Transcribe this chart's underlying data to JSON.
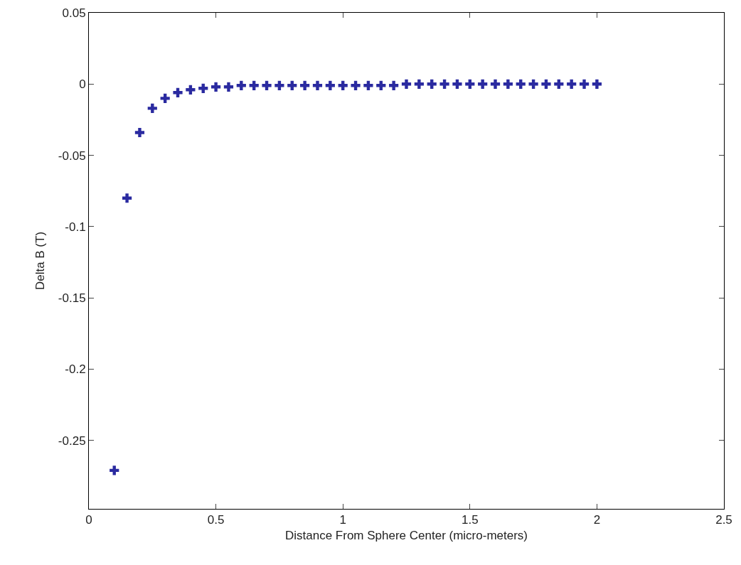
{
  "chart_data": {
    "type": "scatter",
    "xlabel": "Distance From Sphere Center (micro-meters)",
    "ylabel": "Delta B (T)",
    "x": [
      0.1,
      0.15,
      0.2,
      0.25,
      0.3,
      0.35,
      0.4,
      0.45,
      0.5,
      0.55,
      0.6,
      0.65,
      0.7,
      0.75,
      0.8,
      0.85,
      0.9,
      0.95,
      1,
      1.05,
      1.1,
      1.15,
      1.2,
      1.25,
      1.3,
      1.35,
      1.4,
      1.45,
      1.5,
      1.55,
      1.6,
      1.65,
      1.7,
      1.75,
      1.8,
      1.85,
      1.9,
      1.95,
      2
    ],
    "values": [
      -0.271,
      -0.08,
      -0.034,
      -0.017,
      -0.01,
      -0.006,
      -0.004,
      -0.003,
      -0.002,
      -0.002,
      -0.001,
      -0.001,
      -0.001,
      -0.001,
      -0.001,
      -0.001,
      -0.001,
      -0.001,
      -0.001,
      -0.001,
      -0.001,
      -0.001,
      -0.001,
      0,
      0,
      0,
      0,
      0,
      0,
      0,
      0,
      0,
      0,
      0,
      0,
      0,
      0,
      0,
      0
    ],
    "color": "#2a2aa0",
    "marker": "cross",
    "grid": false,
    "legend": false,
    "xlim": [
      0,
      2.5
    ],
    "xticks": [
      0,
      0.5,
      1,
      1.5,
      2,
      2.5
    ],
    "ylim": [
      -0.298,
      0.05
    ],
    "yticks": [
      0.05,
      0,
      -0.05,
      -0.1,
      -0.15,
      -0.2,
      -0.25
    ]
  }
}
